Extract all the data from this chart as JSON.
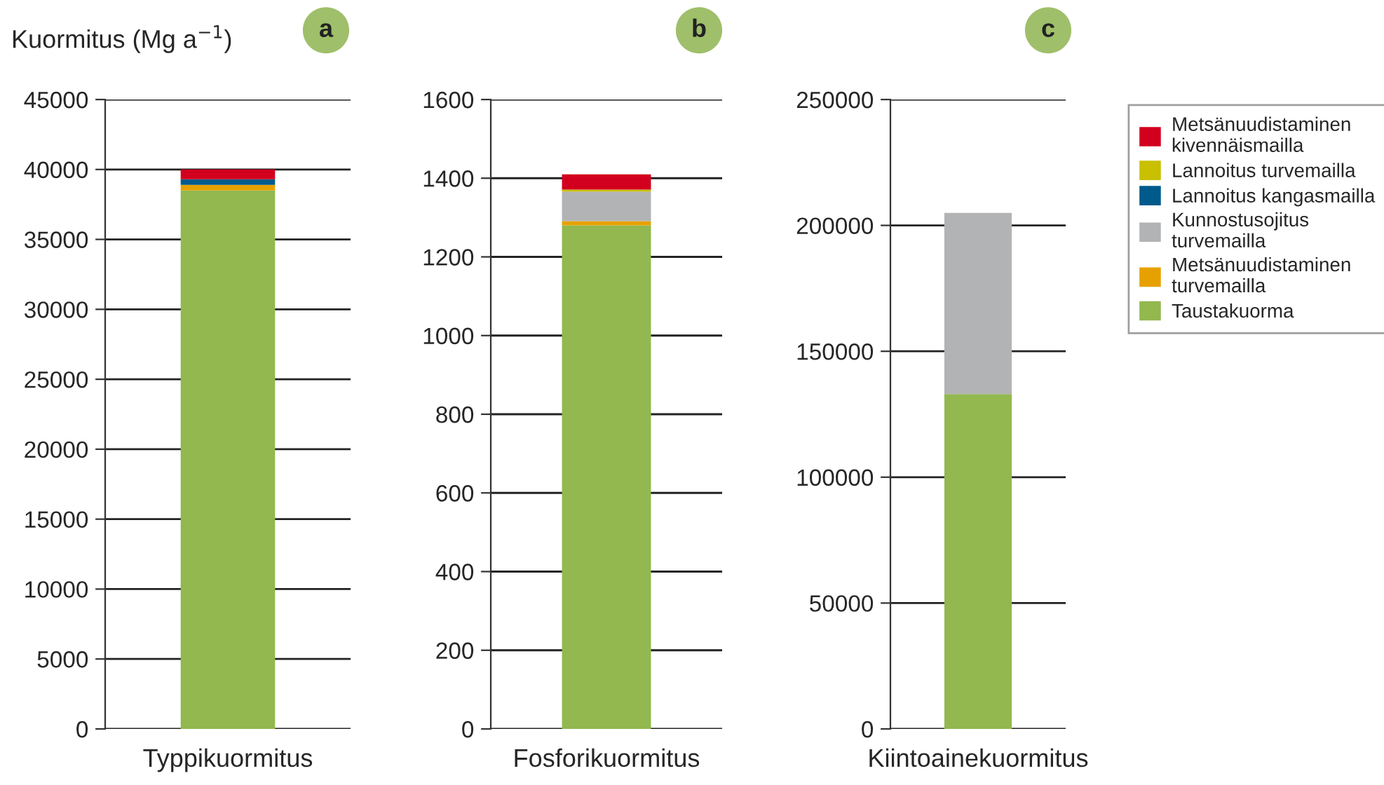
{
  "chart_data": [
    {
      "type": "bar",
      "stacked": true,
      "ylabel": "Kuormitus (Mg a$^{−1}$)",
      "annotations": [
        "a"
      ],
      "categories": [
        "Typpikuormitus"
      ],
      "ylim": [
        0,
        45000
      ],
      "yticks": [
        0,
        5000,
        10000,
        15000,
        20000,
        25000,
        30000,
        35000,
        40000,
        45000
      ],
      "grid": "y",
      "series": [
        {
          "color": "#92b84f",
          "values": [
            38500
          ]
        },
        {
          "color": "#e6a100",
          "values": [
            400
          ]
        },
        {
          "color": "#b2b3b5",
          "values": [
            0
          ]
        },
        {
          "color": "#005a8c",
          "values": [
            400
          ]
        },
        {
          "color": "#c8c000",
          "values": [
            0
          ]
        },
        {
          "color": "#d2001e",
          "values": [
            700
          ]
        }
      ]
    },
    {
      "type": "bar",
      "stacked": true,
      "annotations": [
        "b"
      ],
      "categories": [
        "Fosforikuormitus"
      ],
      "ylim": [
        0,
        1600
      ],
      "yticks": [
        0,
        200,
        400,
        600,
        800,
        1000,
        1200,
        1400,
        1600
      ],
      "grid": "y",
      "series": [
        {
          "color": "#92b84f",
          "values": [
            1280
          ]
        },
        {
          "color": "#e6a100",
          "values": [
            11
          ]
        },
        {
          "color": "#b2b3b5",
          "values": [
            75
          ]
        },
        {
          "color": "#005a8c",
          "values": [
            0
          ]
        },
        {
          "color": "#c8c000",
          "values": [
            5
          ]
        },
        {
          "color": "#d2001e",
          "values": [
            39
          ]
        }
      ]
    },
    {
      "type": "bar",
      "stacked": true,
      "annotations": [
        "c"
      ],
      "categories": [
        "Kiintoainekuormitus"
      ],
      "ylim": [
        0,
        250000
      ],
      "yticks": [
        0,
        50000,
        100000,
        150000,
        200000,
        250000
      ],
      "grid": "y",
      "legend": "right",
      "series": [
        {
          "name": "Taustakuorma",
          "color": "#92b84f",
          "values": [
            133000
          ]
        },
        {
          "name": "Metsänuudistaminen turvemailla",
          "color": "#e6a100",
          "values": [
            0
          ]
        },
        {
          "name": "Kunnostusojitus turvemailla",
          "color": "#b2b3b5",
          "values": [
            72000
          ]
        },
        {
          "name": "Lannoitus kangasmailla",
          "color": "#005a8c",
          "values": [
            0
          ]
        },
        {
          "name": "Lannoitus turvemailla",
          "color": "#c8c000",
          "values": [
            0
          ]
        },
        {
          "name": "Metsänuudistaminen kivennäismailla",
          "color": "#d2001e",
          "values": [
            0
          ]
        }
      ]
    }
  ]
}
